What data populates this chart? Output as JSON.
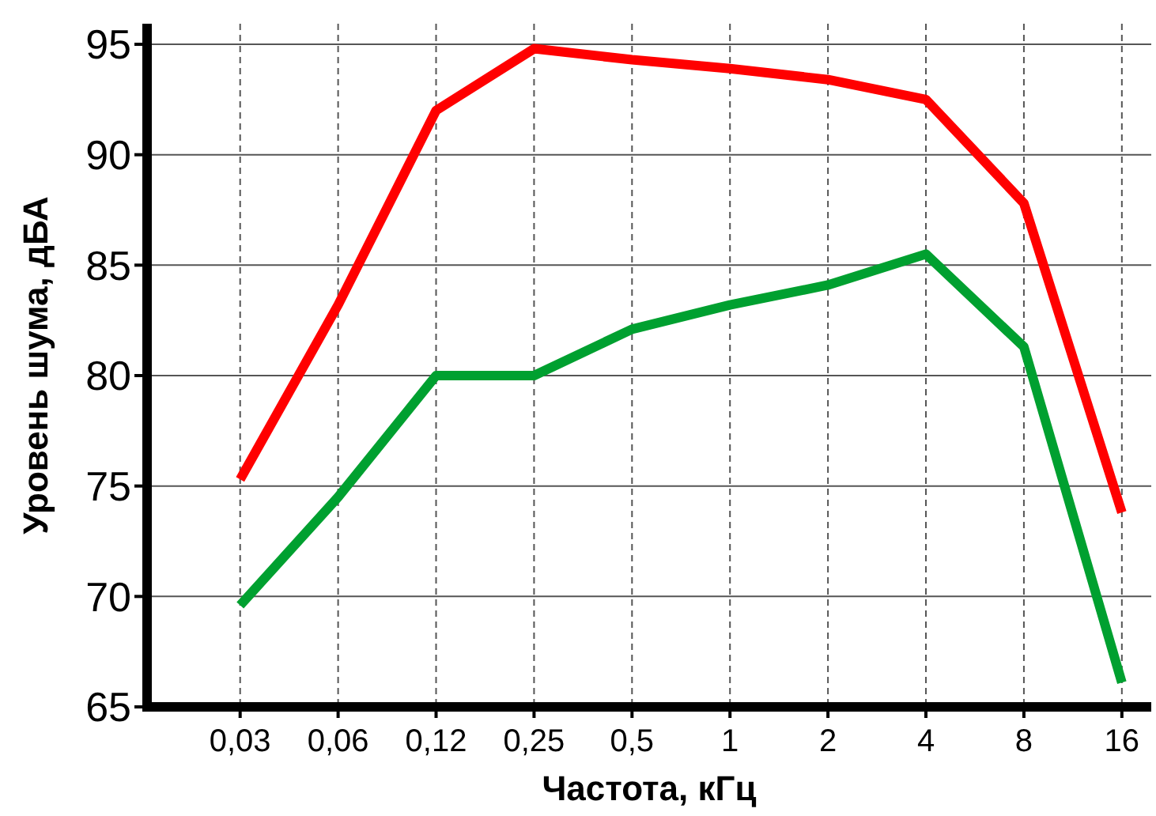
{
  "chart_data": {
    "type": "line",
    "xlabel": "Частота, кГц",
    "ylabel": "Уровень шума, дБА",
    "categories": [
      "0,03",
      "0,06",
      "0,12",
      "0,25",
      "0,5",
      "1",
      "2",
      "4",
      "8",
      "16"
    ],
    "series": [
      {
        "color": "#ff0000",
        "values": [
          75.3,
          83.2,
          92.0,
          94.8,
          94.3,
          93.9,
          93.4,
          92.5,
          87.8,
          73.8
        ]
      },
      {
        "color": "#00a030",
        "values": [
          69.6,
          74.5,
          80.0,
          80.0,
          82.1,
          83.2,
          84.1,
          85.5,
          81.3,
          66.1
        ]
      }
    ],
    "ylim": [
      65,
      95
    ],
    "yticks": [
      65,
      70,
      75,
      80,
      85,
      90,
      95
    ],
    "grid": true,
    "marker": "none",
    "line_style": "solid"
  }
}
